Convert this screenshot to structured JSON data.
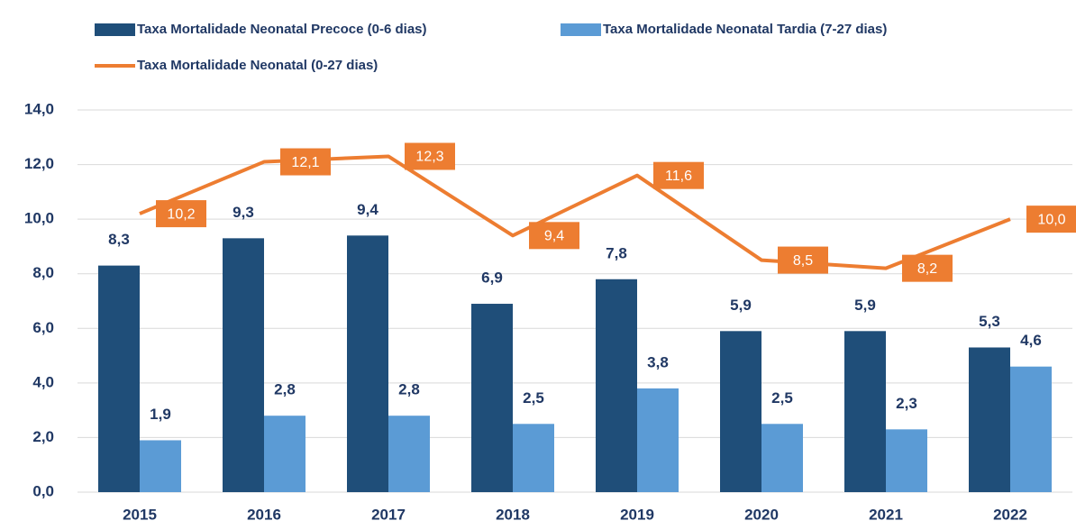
{
  "chart_data": {
    "type": "bar",
    "categories": [
      "2015",
      "2016",
      "2017",
      "2018",
      "2019",
      "2020",
      "2021",
      "2022"
    ],
    "series": [
      {
        "name": "Taxa Mortalidade Neonatal Precoce (0-6 dias)",
        "color": "#1f4e79",
        "type": "bar",
        "values": [
          8.3,
          9.3,
          9.4,
          6.9,
          7.8,
          5.9,
          5.9,
          5.3
        ],
        "value_labels": [
          "8,3",
          "9,3",
          "9,4",
          "6,9",
          "7,8",
          "5,9",
          "5,9",
          "5,3"
        ]
      },
      {
        "name": "Taxa Mortalidade Neonatal Tardia (7-27 dias)",
        "color": "#5b9bd5",
        "type": "bar",
        "values": [
          1.9,
          2.8,
          2.8,
          2.5,
          3.8,
          2.5,
          2.3,
          4.6
        ],
        "value_labels": [
          "1,9",
          "2,8",
          "2,8",
          "2,5",
          "3,8",
          "2,5",
          "2,3",
          "4,6"
        ]
      },
      {
        "name": "Taxa Mortalidade Neonatal (0-27 dias)",
        "color": "#ed7d31",
        "type": "line",
        "values": [
          10.2,
          12.1,
          12.3,
          9.4,
          11.6,
          8.5,
          8.2,
          10.0
        ],
        "value_labels": [
          "10,2",
          "12,1",
          "12,3",
          "9,4",
          "11,6",
          "8,5",
          "8,2",
          "10,0"
        ]
      }
    ],
    "ylim": [
      0,
      14
    ],
    "yticks": [
      {
        "value": 0,
        "label": "0,0"
      },
      {
        "value": 2,
        "label": "2,0"
      },
      {
        "value": 4,
        "label": "4,0"
      },
      {
        "value": 6,
        "label": "6,0"
      },
      {
        "value": 8,
        "label": "8,0"
      },
      {
        "value": 10,
        "label": "10,0"
      },
      {
        "value": 12,
        "label": "12,0"
      },
      {
        "value": 14,
        "label": "14,0"
      }
    ],
    "grid": true,
    "legend": "top"
  }
}
